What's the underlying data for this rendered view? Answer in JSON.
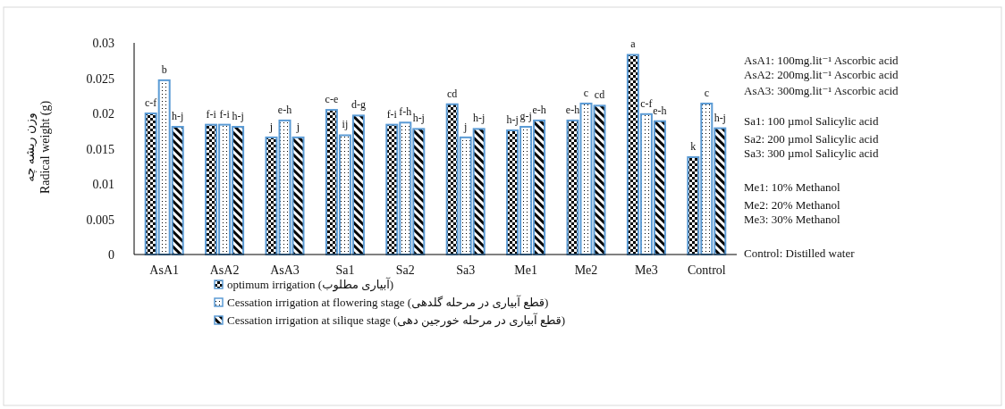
{
  "chart_data": {
    "type": "bar",
    "ylabel": "وزن ریشه چه\nRadical weight (g)",
    "categories": [
      "AsA1",
      "AsA2",
      "AsA3",
      "Sa1",
      "Sa2",
      "Sa3",
      "Me1",
      "Me2",
      "Me3",
      "Control"
    ],
    "series": [
      {
        "name": "optimum irrigation (آبیاری مطلوب)",
        "color": "#5b9bd5",
        "values": [
          0.02,
          0.0184,
          0.0166,
          0.0205,
          0.0184,
          0.0213,
          0.0176,
          0.019,
          0.0283,
          0.0138
        ],
        "value_labels": [
          "c-f",
          "f-i",
          "j",
          "c-e",
          "f-i",
          "cd",
          "h-j",
          "e-h",
          "a",
          "k"
        ]
      },
      {
        "name": "Cessation irrigation at flowering stage (قطع آبیاری در مرحله گلدهی)",
        "color": "#5b9bd5",
        "values": [
          0.0247,
          0.0184,
          0.019,
          0.0169,
          0.0187,
          0.0166,
          0.0181,
          0.0214,
          0.0199,
          0.0214
        ],
        "value_labels": [
          "b",
          "f-i",
          "e-h",
          "ij",
          "f-h",
          "j",
          "g-j",
          "c",
          "c-f",
          "c"
        ]
      },
      {
        "name": "Cessation irrigation at silique stage (قطع آبیاری در مرحله خورجین دهی)",
        "color": "#5b9bd5",
        "values": [
          0.0181,
          0.0181,
          0.0166,
          0.0197,
          0.0178,
          0.0178,
          0.019,
          0.0211,
          0.0189,
          0.0179
        ],
        "value_labels": [
          "h-j",
          "h-j",
          "j",
          "d-g",
          "h-j",
          "h-j",
          "e-h",
          "cd",
          "e-h",
          "h-j"
        ]
      }
    ],
    "ylim": [
      0,
      0.03
    ],
    "yticks": [
      0,
      0.005,
      0.01,
      0.015,
      0.02,
      0.025,
      0.03
    ],
    "legend": "bottom",
    "grid": false,
    "annotations": [
      "AsA1: 100mg.lit⁻¹ Ascorbic acid",
      "AsA2: 200mg.lit⁻¹ Ascorbic acid",
      "AsA3: 300mg.lit⁻¹ Ascorbic acid",
      "Sa1: 100 µmol Salicylic acid",
      "Sa2: 200 µmol Salicylic acid",
      "Sa3: 300 µmol Salicylic acid",
      "Me1: 10% Methanol",
      "Me2: 20% Methanol",
      "Me3: 30% Methanol",
      "Control: Distilled water"
    ]
  }
}
